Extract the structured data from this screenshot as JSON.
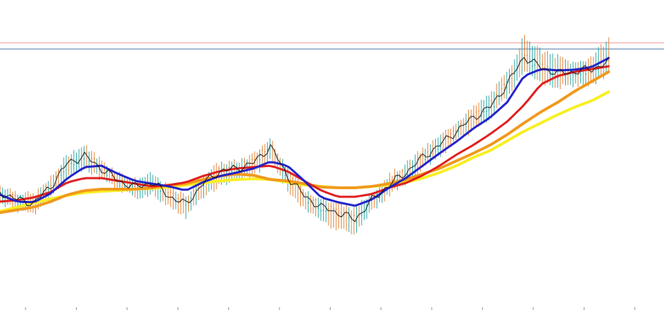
{
  "chart_data": {
    "type": "line",
    "title": "",
    "xlabel": "",
    "ylabel": "",
    "grid": false,
    "legend": "none",
    "x_ticks_count": 13,
    "x": [
      0,
      5,
      10,
      15,
      20,
      25,
      30,
      35,
      40,
      45,
      50,
      55,
      60,
      65,
      70,
      75,
      80,
      85,
      90,
      95,
      100,
      105,
      110,
      115,
      120,
      125,
      130,
      135,
      140,
      145,
      150,
      155,
      160,
      165,
      170,
      175,
      180
    ],
    "ylim": [
      0,
      449
    ],
    "price_close": [
      278,
      289,
      294,
      270,
      236,
      226,
      244,
      262,
      271,
      264,
      284,
      296,
      266,
      248,
      244,
      236,
      212,
      255,
      284,
      300,
      308,
      318,
      290,
      268,
      250,
      228,
      210,
      190,
      170,
      155,
      122,
      82,
      98,
      106,
      104,
      100,
      90
    ],
    "price_high": [
      272,
      282,
      286,
      262,
      228,
      215,
      236,
      254,
      264,
      256,
      276,
      288,
      258,
      240,
      238,
      228,
      204,
      248,
      278,
      292,
      300,
      306,
      282,
      258,
      242,
      220,
      202,
      180,
      160,
      140,
      110,
      56,
      78,
      86,
      96,
      86,
      60
    ],
    "price_low": [
      290,
      300,
      306,
      282,
      252,
      240,
      256,
      272,
      282,
      276,
      296,
      310,
      282,
      264,
      256,
      250,
      228,
      270,
      300,
      316,
      330,
      334,
      300,
      280,
      262,
      240,
      222,
      200,
      184,
      166,
      136,
      100,
      118,
      122,
      120,
      118,
      104
    ],
    "series": [
      {
        "name": "",
        "color": "#1e1ec8",
        "values": [
          282,
          292,
          293,
          280,
          258,
          242,
          240,
          252,
          262,
          266,
          270,
          276,
          264,
          255,
          250,
          244,
          234,
          240,
          262,
          286,
          293,
          298,
          289,
          272,
          258,
          240,
          222,
          205,
          186,
          170,
          148,
          110,
          100,
          102,
          101,
          97,
          84
        ]
      },
      {
        "name": "",
        "color": "#e01818",
        "values": [
          292,
          290,
          286,
          278,
          264,
          258,
          258,
          262,
          266,
          270,
          268,
          264,
          255,
          248,
          244,
          242,
          240,
          248,
          262,
          276,
          285,
          285,
          281,
          272,
          265,
          254,
          240,
          224,
          210,
          194,
          176,
          152,
          122,
          110,
          104,
          100,
          96
        ]
      },
      {
        "name": "",
        "color": "#f0981a",
        "values": [
          308,
          304,
          300,
          292,
          282,
          276,
          274,
          274,
          274,
          272,
          268,
          266,
          260,
          255,
          252,
          254,
          260,
          262,
          266,
          271,
          272,
          272,
          270,
          266,
          260,
          252,
          244,
          233,
          222,
          210,
          195,
          178,
          162,
          148,
          132,
          118,
          104
        ]
      },
      {
        "name": "",
        "color": "#f8ee20",
        "values": [
          306,
          300,
          294,
          288,
          283,
          279,
          277,
          276,
          274,
          273,
          271,
          268,
          265,
          262,
          260,
          259,
          260,
          264,
          268,
          270,
          272,
          272,
          270,
          268,
          264,
          258,
          250,
          240,
          228,
          218,
          204,
          190,
          178,
          166,
          155,
          146,
          133
        ]
      }
    ],
    "reference_lines": [
      {
        "color": "#f08a8a",
        "y": 62
      },
      {
        "color": "#3a6aa0",
        "y": 71
      }
    ]
  }
}
